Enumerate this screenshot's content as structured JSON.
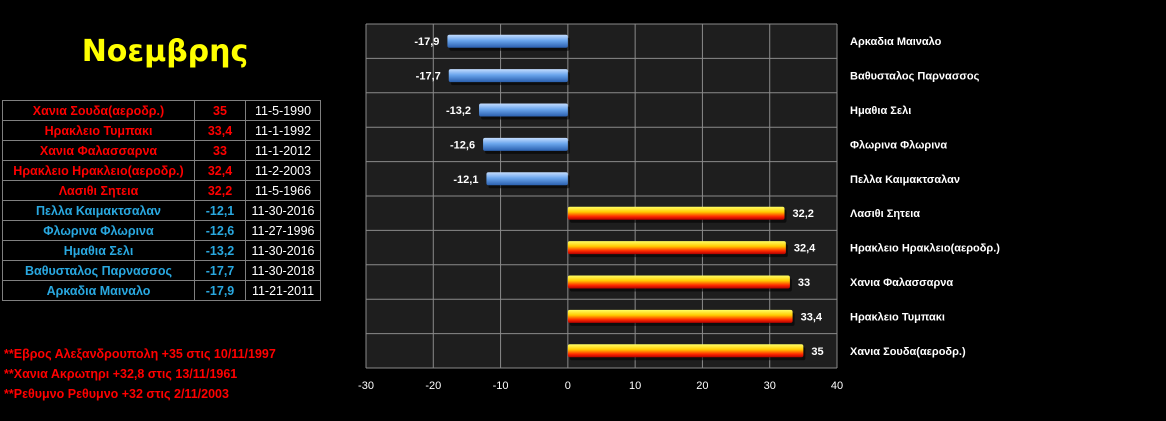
{
  "title": "Νοεμβρης",
  "colors": {
    "hot": "#ff0000",
    "cold": "#29a8e0",
    "background": "#000000",
    "plot_background": "#1e1e1e",
    "gridline": "#8a8a8a",
    "text": "#ffffff",
    "title": "#ffff00"
  },
  "records_table": [
    {
      "station": "Χανια Σουδα(αεροδρ.)",
      "value": "35",
      "date": "11-5-1990",
      "kind": "hot"
    },
    {
      "station": "Ηρακλειο Τυμπακι",
      "value": "33,4",
      "date": "11-1-1992",
      "kind": "hot"
    },
    {
      "station": "Χανια Φαλασσαρνα",
      "value": "33",
      "date": "11-1-2012",
      "kind": "hot"
    },
    {
      "station": "Ηρακλειο Ηρακλειο(αεροδρ.)",
      "value": "32,4",
      "date": "11-2-2003",
      "kind": "hot"
    },
    {
      "station": "Λασιθι Σητεια",
      "value": "32,2",
      "date": "11-5-1966",
      "kind": "hot"
    },
    {
      "station": "Πελλα Καιμακτσαλαν",
      "value": "-12,1",
      "date": "11-30-2016",
      "kind": "cold"
    },
    {
      "station": "Φλωρινα Φλωρινα",
      "value": "-12,6",
      "date": "11-27-1996",
      "kind": "cold"
    },
    {
      "station": "Ημαθια Σελι",
      "value": "-13,2",
      "date": "11-30-2016",
      "kind": "cold"
    },
    {
      "station": "Βαθυσταλος Παρνασσος",
      "value": "-17,7",
      "date": "11-30-2018",
      "kind": "cold"
    },
    {
      "station": "Αρκαδια Μαιναλο",
      "value": "-17,9",
      "date": "11-21-2011",
      "kind": "cold"
    }
  ],
  "notes": [
    "**Εβρος Αλεξανδρουπολη +35 στις 10/11/1997",
    "**Χανια Ακρωτηρι +32,8 στις 13/11/1961",
    "**Ρεθυμνο Ρεθυμνο +32 στις 2/11/2003"
  ],
  "chart_data": {
    "type": "bar",
    "orientation": "horizontal",
    "categories": [
      "Αρκαδια Μαιναλο",
      "Βαθυσταλος Παρνασσος",
      "Ημαθια Σελι",
      "Φλωρινα Φλωρινα",
      "Πελλα Καιμακτσαλαν",
      "Λασιθι Σητεια",
      "Ηρακλειο Ηρακλειο(αεροδρ.)",
      "Χανια Φαλασσαρνα",
      "Ηρακλειο Τυμπακι",
      "Χανια Σουδα(αεροδρ.)"
    ],
    "values": [
      -17.9,
      -17.7,
      -13.2,
      -12.6,
      -12.1,
      32.2,
      32.4,
      33,
      33.4,
      35
    ],
    "data_labels": [
      "-17,9",
      "-17,7",
      "-13,2",
      "-12,6",
      "-12,1",
      "32,2",
      "32,4",
      "33",
      "33,4",
      "35"
    ],
    "xlim": [
      -30,
      40
    ],
    "x_ticks": [
      -30,
      -20,
      -10,
      0,
      10,
      20,
      30,
      40
    ],
    "grid": true,
    "negative_bar_color": "#4f8fd8",
    "positive_bar_color": "#ff0000",
    "positive_bar_highlight": "#ffff00",
    "title": "",
    "xlabel": "",
    "ylabel": ""
  }
}
